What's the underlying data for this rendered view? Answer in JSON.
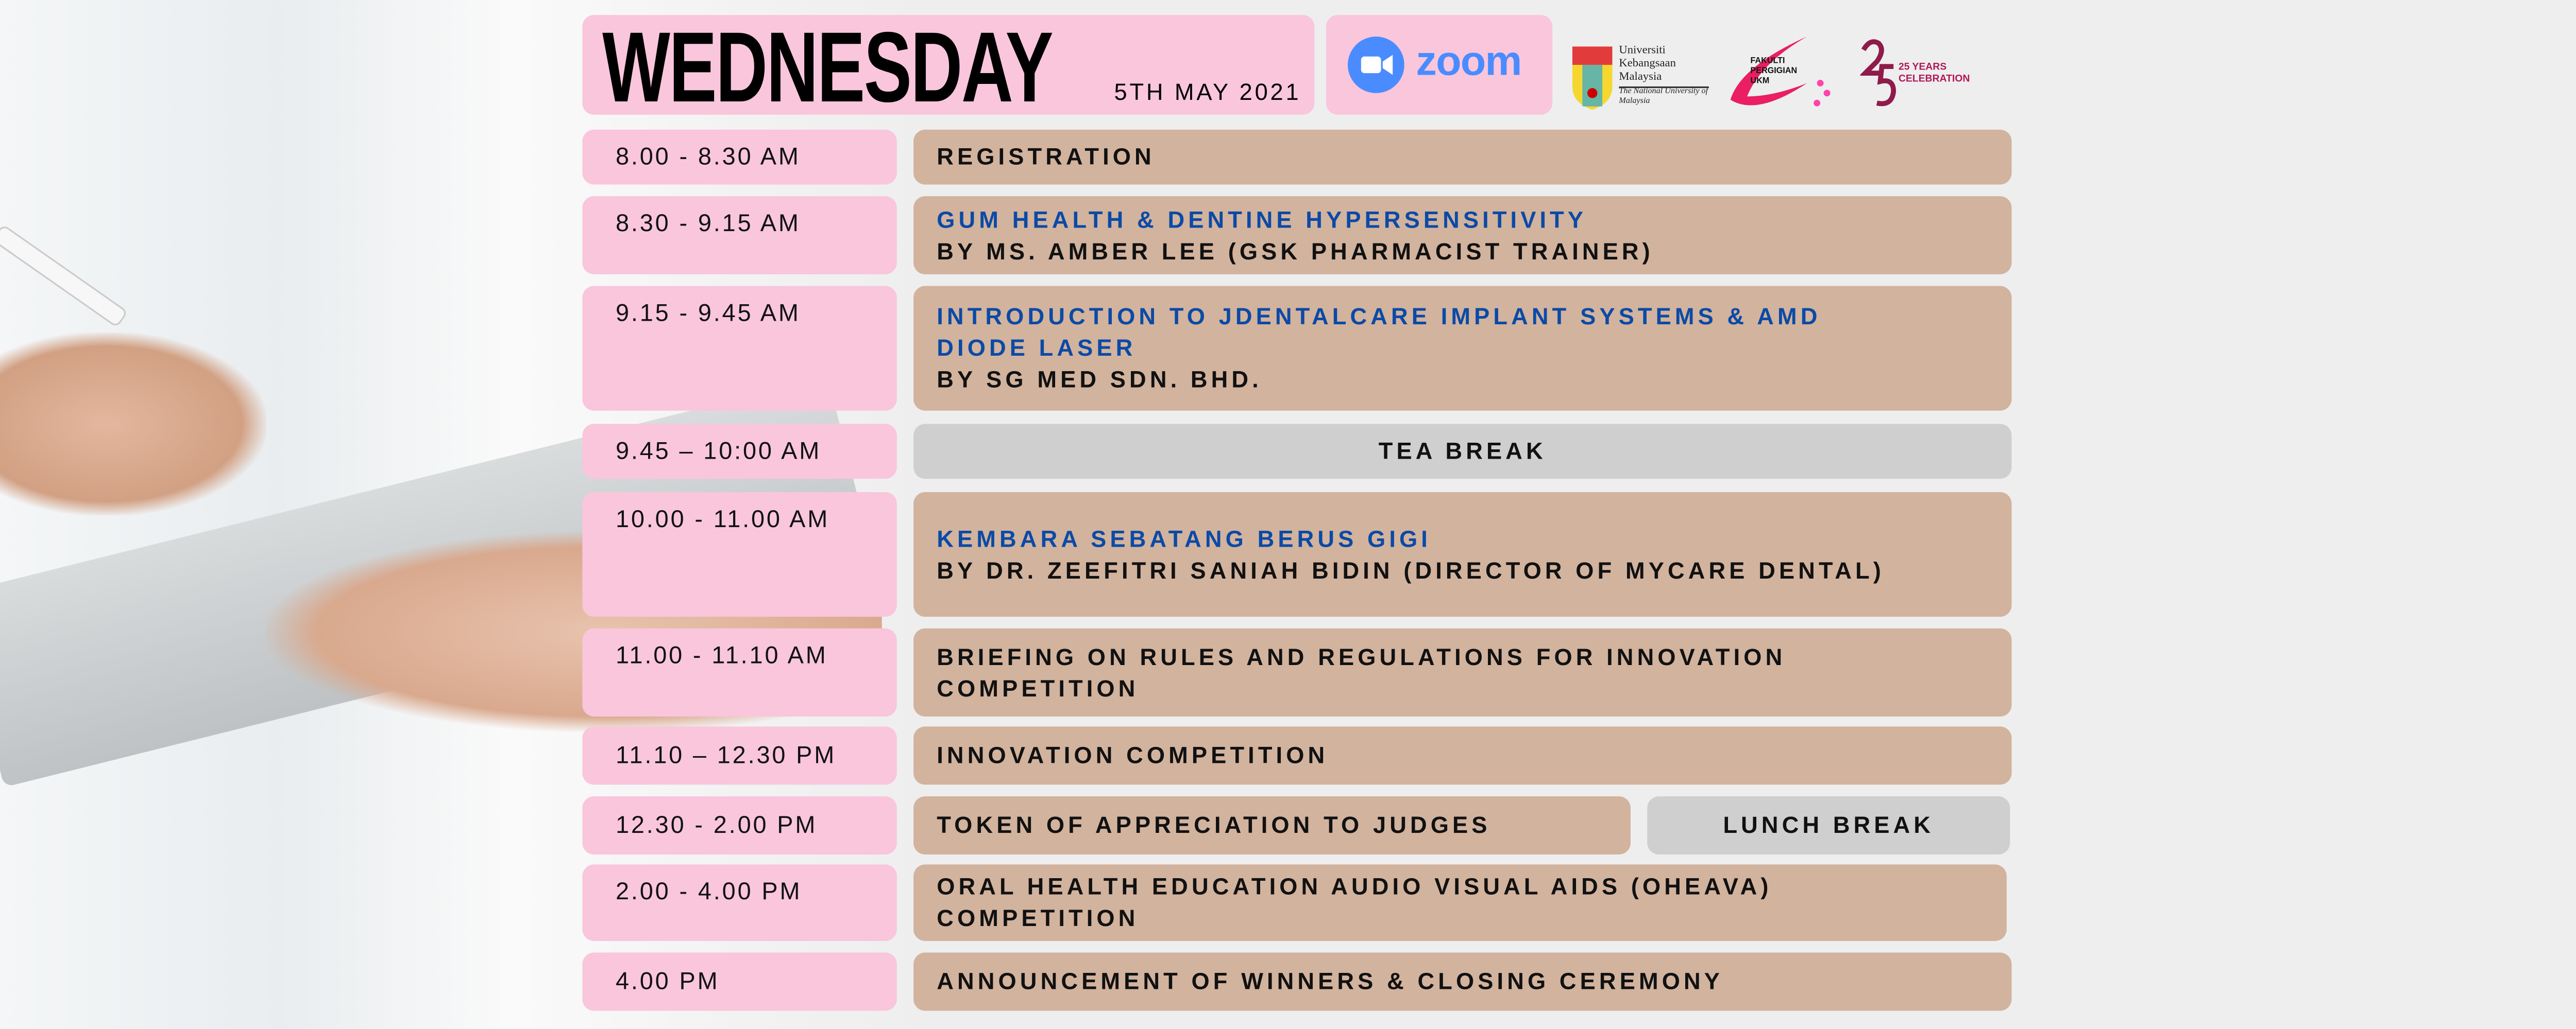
{
  "header": {
    "day": "WEDNESDAY",
    "date": "5TH MAY 2021",
    "zoom_label": "zoom"
  },
  "logos": {
    "ukm": {
      "line1": "Universiti",
      "line2": "Kebangsaan",
      "line3": "Malaysia",
      "tagline": "The National University of Malaysia"
    },
    "faculty": "FAKULTI PERGIGIAN UKM",
    "anniversary": "25 YEARS CELEBRATION"
  },
  "colors": {
    "time_bg": "#f9c6dc",
    "session_bg": "#d2b39e",
    "break_bg": "#cfcfcf",
    "title_blue": "#0b4aa6",
    "zoom_blue": "#4a8cff"
  },
  "schedule": [
    {
      "time": "8.00 - 8.30 AM",
      "lines": [
        "REGISTRATION"
      ]
    },
    {
      "time": "8.30 - 9.15 AM",
      "title": "GUM HEALTH & DENTINE HYPERSENSITIVITY",
      "lines": [
        "BY MS. AMBER LEE (GSK PHARMACIST TRAINER)"
      ]
    },
    {
      "time": "9.15 - 9.45 AM",
      "title": "INTRODUCTION TO JDENTALCARE IMPLANT SYSTEMS & AMD DIODE LASER",
      "lines": [
        "BY SG MED SDN. BHD."
      ]
    },
    {
      "time": "9.45 – 10:00 AM",
      "lines": [
        "TEA BREAK"
      ]
    },
    {
      "time": "10.00 - 11.00 AM",
      "title": "KEMBARA SEBATANG BERUS GIGI",
      "lines": [
        "BY DR. ZEEFITRI SANIAH BIDIN (DIRECTOR OF MYCARE DENTAL)"
      ]
    },
    {
      "time": "11.00 - 11.10 AM",
      "lines": [
        "BRIEFING ON RULES AND REGULATIONS FOR INNOVATION COMPETITION"
      ]
    },
    {
      "time": "11.10 – 12.30 PM",
      "lines": [
        "INNOVATION COMPETITION"
      ]
    },
    {
      "time": "12.30 - 2.00 PM",
      "lines": [
        "TOKEN OF APPRECIATION TO JUDGES"
      ],
      "side": "LUNCH BREAK"
    },
    {
      "time": "2.00 - 4.00 PM",
      "lines": [
        "ORAL HEALTH EDUCATION AUDIO VISUAL AIDS (OHEAVA) COMPETITION"
      ]
    },
    {
      "time": "4.00 PM",
      "lines": [
        "ANNOUNCEMENT OF WINNERS & CLOSING CEREMONY"
      ]
    }
  ]
}
